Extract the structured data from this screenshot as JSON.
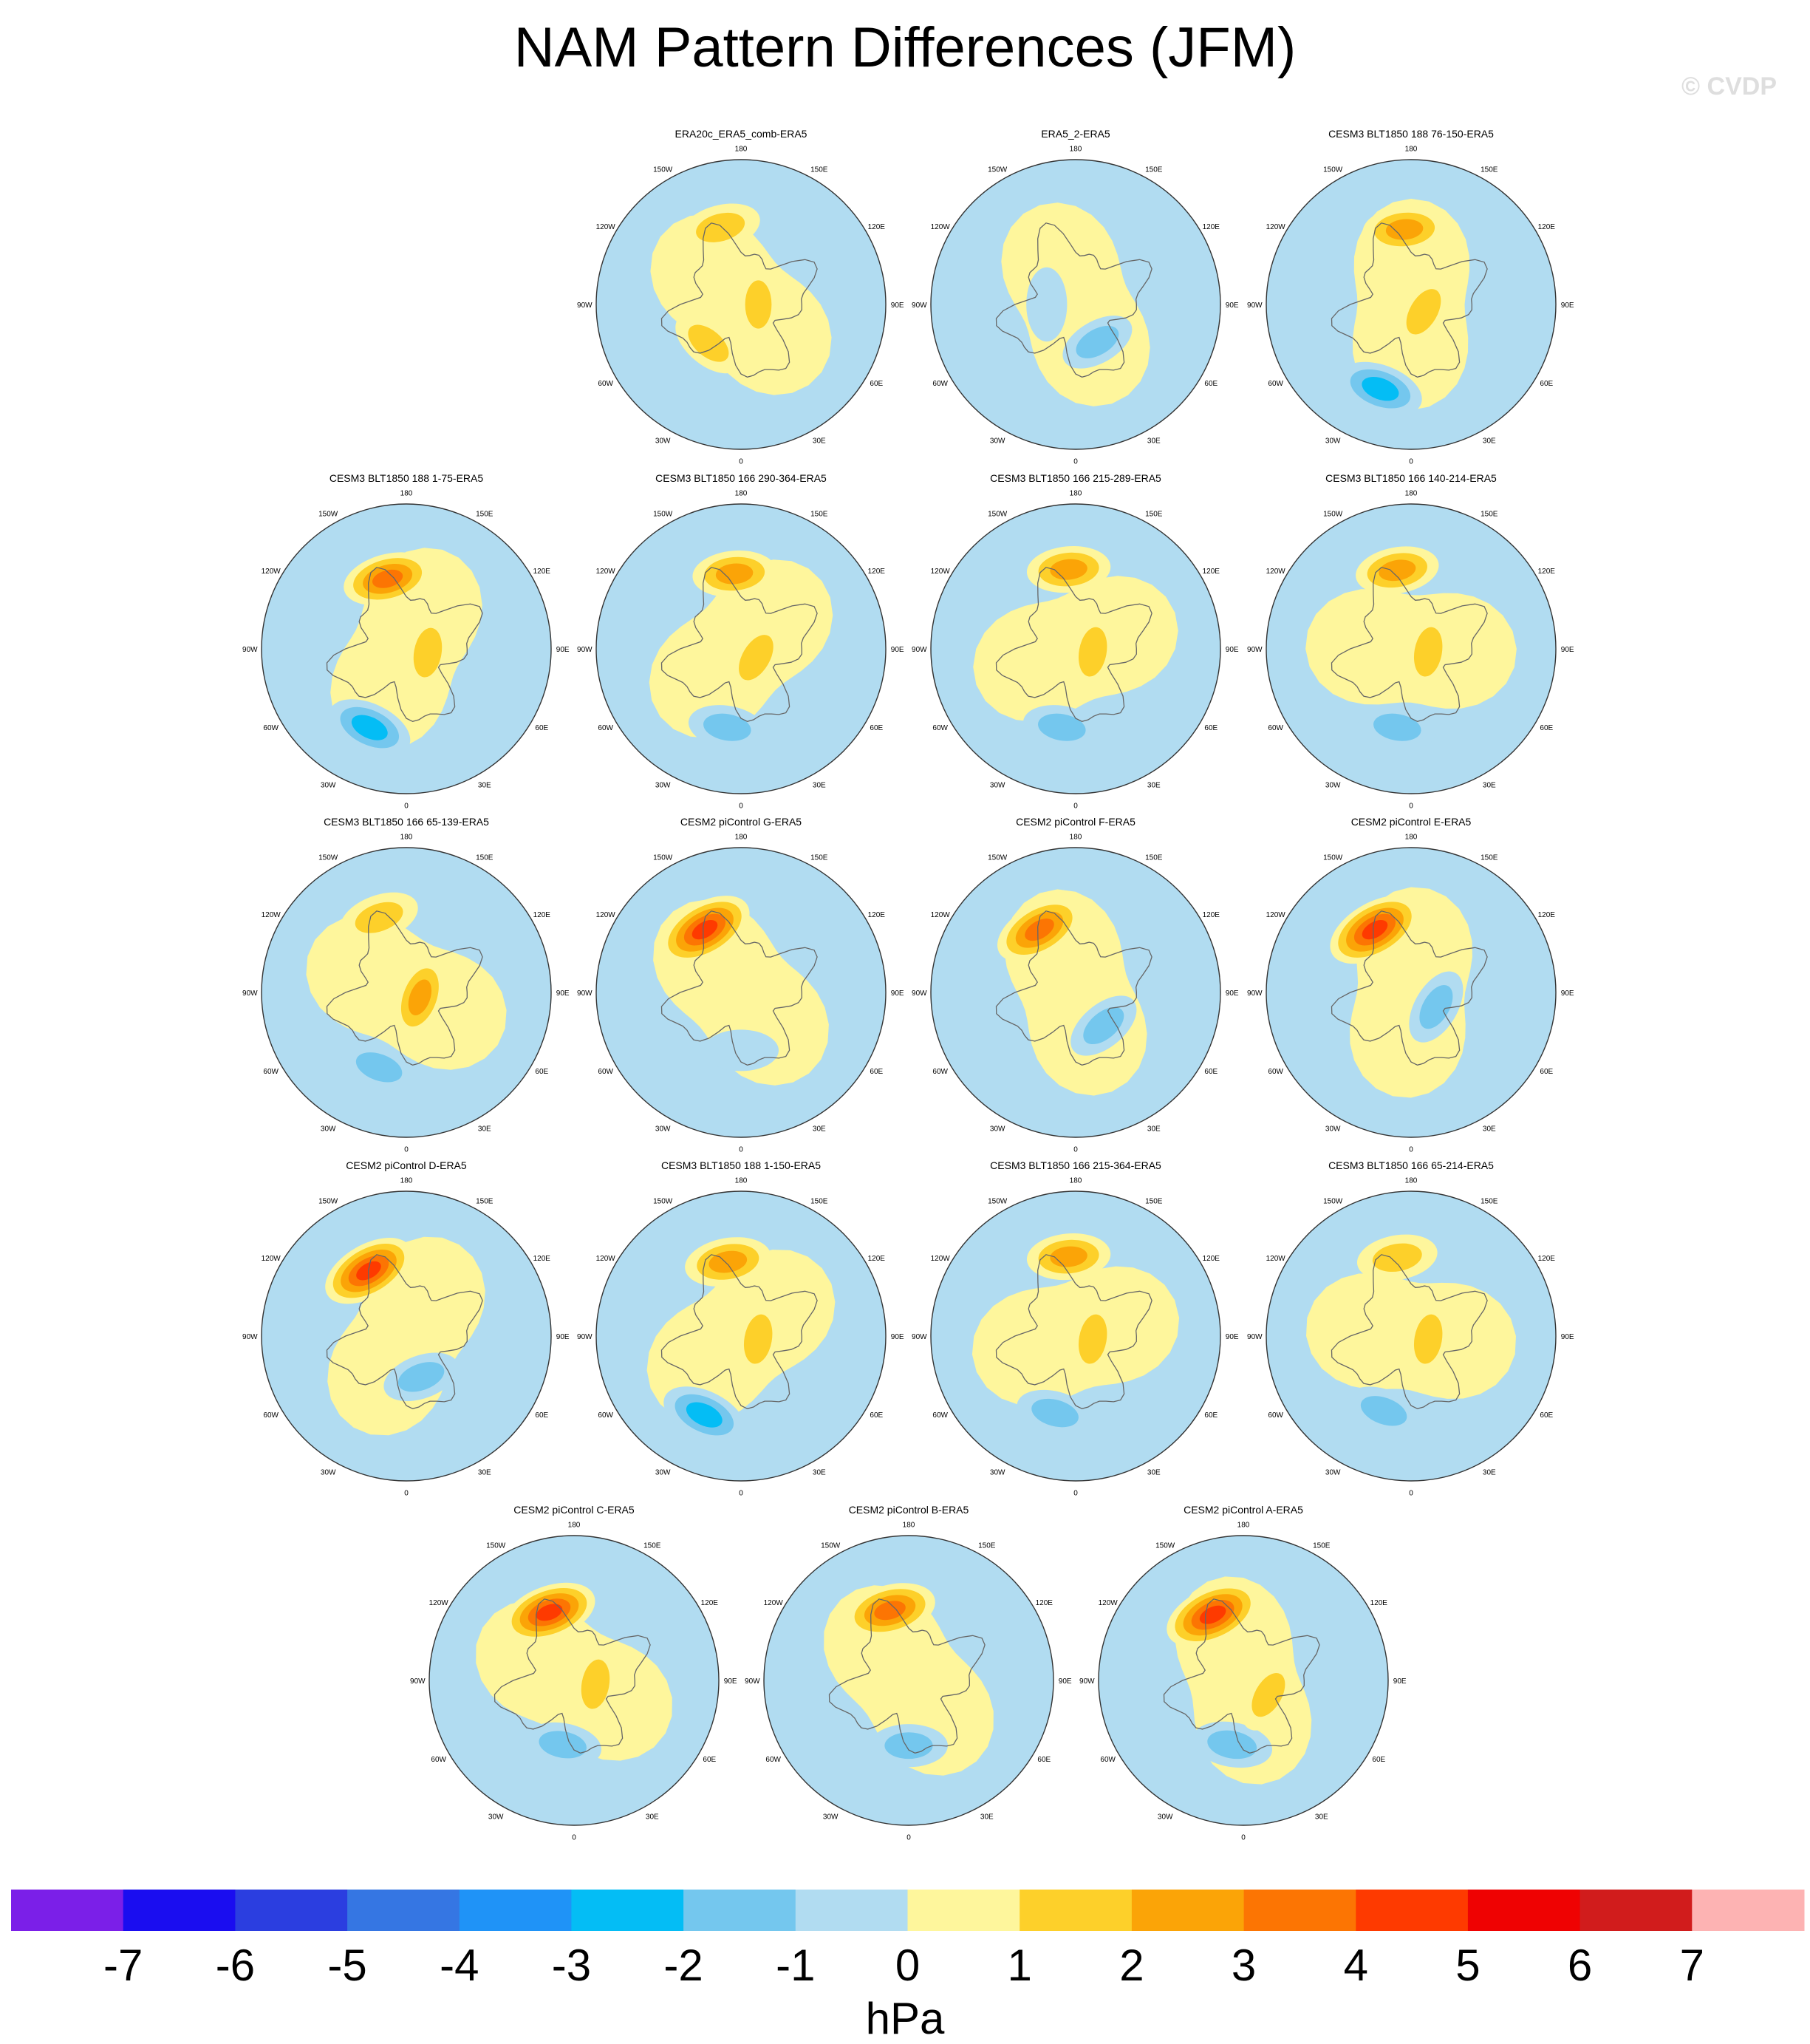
{
  "figure": {
    "title": "NAM Pattern Differences (JFM)",
    "watermark": "© CVDP",
    "units": "hPa"
  },
  "chart_data": {
    "type": "heatmap",
    "projection": "polar-stereographic-north",
    "title": "NAM Pattern Differences (JFM)",
    "colorbar": {
      "label": "hPa",
      "ticks": [
        "-7",
        "-6",
        "-5",
        "-4",
        "-3",
        "-2",
        "-1",
        "0",
        "1",
        "2",
        "3",
        "4",
        "5",
        "6",
        "7"
      ],
      "colors": [
        "#7b1fe8",
        "#1a0df0",
        "#2b3ee0",
        "#3576e3",
        "#1f93f7",
        "#04bdf5",
        "#74c7ee",
        "#b1dcf1",
        "#fef69c",
        "#fdd02a",
        "#fba407",
        "#fc7503",
        "#fe3a00",
        "#ef0202",
        "#d11c1c",
        "#fdb3b3"
      ]
    },
    "lon_labels": [
      "180",
      "150E",
      "120E",
      "90E",
      "60E",
      "30E",
      "0",
      "30W",
      "60W",
      "90W",
      "120W",
      "150W"
    ],
    "panels": [
      {
        "title": "ERA20c_ERA5_comb-ERA5",
        "anomalies": [
          {
            "lon": -165,
            "r": 0.55,
            "v": 2
          },
          {
            "lon": 90,
            "r": 0.12,
            "v": 1.5
          },
          {
            "lon": -40,
            "r": 0.35,
            "v": 1.5
          }
        ]
      },
      {
        "title": "ERA5_2-ERA5",
        "anomalies": [
          {
            "lon": 30,
            "r": 0.3,
            "v": -1.2
          },
          {
            "lon": -90,
            "r": 0.2,
            "v": -0.8
          }
        ]
      },
      {
        "title": "CESM3 BLT1850 188 76-150-ERA5",
        "anomalies": [
          {
            "lon": -175,
            "r": 0.52,
            "v": 2.5
          },
          {
            "lon": 60,
            "r": 0.1,
            "v": 2
          },
          {
            "lon": -20,
            "r": 0.62,
            "v": -3
          }
        ]
      },
      {
        "title": "CESM3 BLT1850 188 1-75-ERA5",
        "anomalies": [
          {
            "lon": -165,
            "r": 0.5,
            "v": 3.5
          },
          {
            "lon": 80,
            "r": 0.15,
            "v": 2
          },
          {
            "lon": -25,
            "r": 0.6,
            "v": -3
          }
        ]
      },
      {
        "title": "CESM3 BLT1850 166 290-364-ERA5",
        "anomalies": [
          {
            "lon": -175,
            "r": 0.52,
            "v": 2.5
          },
          {
            "lon": 60,
            "r": 0.12,
            "v": 2
          },
          {
            "lon": -10,
            "r": 0.55,
            "v": -1.5
          }
        ]
      },
      {
        "title": "CESM3 BLT1850 166 215-289-ERA5",
        "anomalies": [
          {
            "lon": -175,
            "r": 0.55,
            "v": 2.5
          },
          {
            "lon": 80,
            "r": 0.12,
            "v": 2
          },
          {
            "lon": -10,
            "r": 0.55,
            "v": -1.5
          }
        ]
      },
      {
        "title": "CESM3 BLT1850 166 140-214-ERA5",
        "anomalies": [
          {
            "lon": -170,
            "r": 0.55,
            "v": 2.5
          },
          {
            "lon": 80,
            "r": 0.12,
            "v": 2
          },
          {
            "lon": -10,
            "r": 0.55,
            "v": -1.5
          }
        ]
      },
      {
        "title": "CESM3 BLT1850 166 65-139-ERA5",
        "anomalies": [
          {
            "lon": -160,
            "r": 0.55,
            "v": 2
          },
          {
            "lon": 70,
            "r": 0.1,
            "v": 2.5
          },
          {
            "lon": -20,
            "r": 0.55,
            "v": -1.5
          }
        ]
      },
      {
        "title": "CESM2 piControl G-ERA5",
        "anomalies": [
          {
            "lon": -150,
            "r": 0.5,
            "v": 5
          },
          {
            "lon": 0,
            "r": 0.4,
            "v": -1
          }
        ]
      },
      {
        "title": "CESM2 piControl F-ERA5",
        "anomalies": [
          {
            "lon": -150,
            "r": 0.5,
            "v": 4
          },
          {
            "lon": 40,
            "r": 0.3,
            "v": -1.5
          }
        ]
      },
      {
        "title": "CESM2 piControl E-ERA5",
        "anomalies": [
          {
            "lon": -150,
            "r": 0.5,
            "v": 5
          },
          {
            "lon": 60,
            "r": 0.2,
            "v": -1.5
          }
        ]
      },
      {
        "title": "CESM2 piControl D-ERA5",
        "anomalies": [
          {
            "lon": -150,
            "r": 0.52,
            "v": 4.5
          },
          {
            "lon": 20,
            "r": 0.3,
            "v": -1.5
          }
        ]
      },
      {
        "title": "CESM3 BLT1850 188 1-150-ERA5",
        "anomalies": [
          {
            "lon": -170,
            "r": 0.52,
            "v": 3
          },
          {
            "lon": 80,
            "r": 0.12,
            "v": 2
          },
          {
            "lon": -25,
            "r": 0.6,
            "v": -3
          }
        ]
      },
      {
        "title": "CESM3 BLT1850 166 215-364-ERA5",
        "anomalies": [
          {
            "lon": -175,
            "r": 0.55,
            "v": 2.5
          },
          {
            "lon": 80,
            "r": 0.12,
            "v": 2
          },
          {
            "lon": -15,
            "r": 0.55,
            "v": -1.5
          }
        ]
      },
      {
        "title": "CESM3 BLT1850 166 65-214-ERA5",
        "anomalies": [
          {
            "lon": -170,
            "r": 0.55,
            "v": 2
          },
          {
            "lon": 80,
            "r": 0.12,
            "v": 2
          },
          {
            "lon": -20,
            "r": 0.55,
            "v": -1.5
          }
        ]
      },
      {
        "title": "CESM2 piControl C-ERA5",
        "anomalies": [
          {
            "lon": -160,
            "r": 0.5,
            "v": 4.5
          },
          {
            "lon": 80,
            "r": 0.15,
            "v": 2
          },
          {
            "lon": -10,
            "r": 0.45,
            "v": -1.5
          }
        ]
      },
      {
        "title": "CESM2 piControl B-ERA5",
        "anomalies": [
          {
            "lon": -165,
            "r": 0.5,
            "v": 4
          },
          {
            "lon": 0,
            "r": 0.45,
            "v": -1.5
          }
        ]
      },
      {
        "title": "CESM2 piControl A-ERA5",
        "anomalies": [
          {
            "lon": -155,
            "r": 0.5,
            "v": 5
          },
          {
            "lon": -10,
            "r": 0.45,
            "v": -2
          },
          {
            "lon": 60,
            "r": 0.2,
            "v": 1.5
          }
        ]
      }
    ]
  }
}
